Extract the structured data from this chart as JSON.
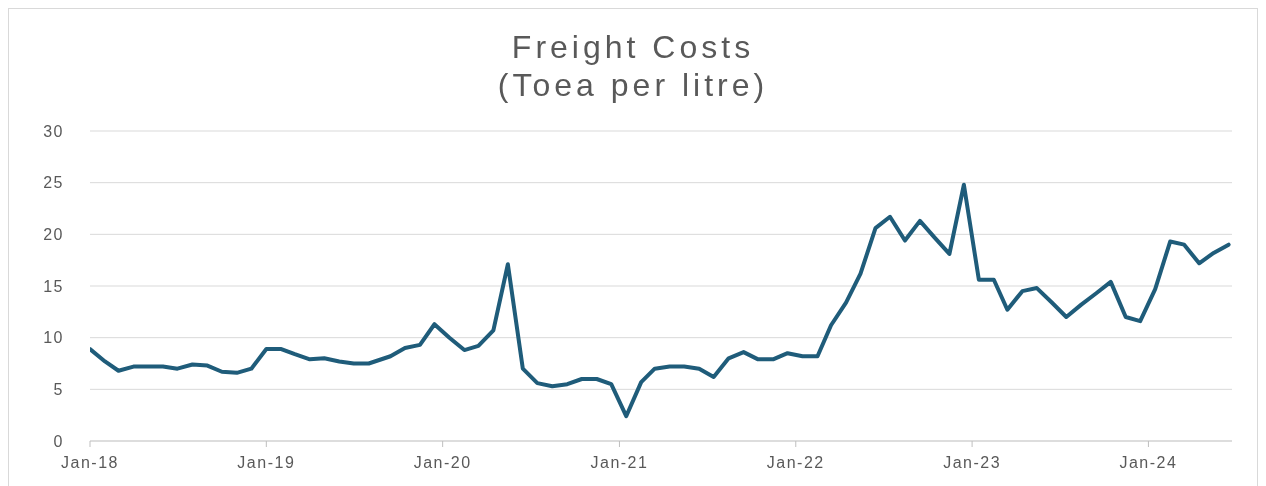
{
  "chart_data": {
    "type": "line",
    "title": "Freight Costs",
    "subtitle": "(Toea per litre)",
    "x": [
      "2018-01",
      "2018-02",
      "2018-03",
      "2018-04",
      "2018-05",
      "2018-06",
      "2018-07",
      "2018-08",
      "2018-09",
      "2018-10",
      "2018-11",
      "2018-12",
      "2019-01",
      "2019-02",
      "2019-03",
      "2019-04",
      "2019-05",
      "2019-06",
      "2019-07",
      "2019-08",
      "2019-09-15",
      "2019-10-15",
      "2019-11-15",
      "2019-12-15",
      "2020-01-15",
      "2020-02-15",
      "2020-03-15",
      "2020-04-15",
      "2020-05-15",
      "2020-06-15",
      "2020-07-15",
      "2020-08-15",
      "2020-09-15",
      "2020-10-15",
      "2020-11-15",
      "2020-12-15",
      "2021-01-15",
      "2021-02-15",
      "2021-03-15",
      "2021-04-15",
      "2021-05-15",
      "2021-06-15",
      "2021-07-15",
      "2021-08-15",
      "2021-09-15",
      "2021-10-15",
      "2021-11-15",
      "2021-12-15",
      "2022-01-15",
      "2022-02-15",
      "2022-03-15",
      "2022-04-15",
      "2022-05-15",
      "2022-06-15",
      "2022-07-15",
      "2022-08-15",
      "2022-09-15",
      "2022-10-15",
      "2022-11-15",
      "2022-12-15",
      "2023-01-15",
      "2023-02-15",
      "2023-03-15",
      "2023-04-15",
      "2023-05-15",
      "2023-06-15",
      "2023-07-15",
      "2023-08-15",
      "2023-09-15",
      "2023-10-15",
      "2023-11-15",
      "2023-12-15",
      "2024-01-15",
      "2024-02-15",
      "2024-03-15",
      "2024-04-15",
      "2024-05-15",
      "2024-06-15"
    ],
    "values": [
      8.9,
      7.7,
      6.8,
      7.2,
      7.2,
      7.2,
      7.0,
      7.4,
      7.3,
      6.7,
      6.6,
      7.0,
      8.9,
      8.9,
      8.4,
      7.9,
      8.0,
      7.7,
      7.5,
      7.5,
      8.2,
      9.0,
      9.3,
      11.3,
      10.0,
      8.8,
      9.2,
      10.7,
      17.1,
      7.0,
      5.6,
      5.3,
      5.5,
      6.0,
      6.0,
      5.5,
      2.4,
      5.7,
      7.0,
      7.2,
      7.2,
      7.0,
      6.2,
      8.0,
      8.6,
      7.9,
      7.9,
      8.5,
      8.2,
      8.2,
      11.2,
      13.4,
      16.2,
      20.6,
      21.7,
      19.4,
      21.3,
      19.7,
      18.1,
      24.8,
      15.6,
      15.6,
      12.7,
      14.5,
      14.8,
      13.4,
      12.0,
      13.2,
      14.3,
      15.4,
      12.0,
      11.6,
      14.7,
      19.3,
      19.0,
      17.2,
      18.2,
      19.0
    ],
    "color": "#1f5c7a",
    "line_style": "solid",
    "xlim": [
      "2018-01-01",
      "2024-06-22"
    ],
    "xticks": [
      {
        "value": "2018-01-01",
        "label": "Jan-18"
      },
      {
        "value": "2019-01-01",
        "label": "Jan-19"
      },
      {
        "value": "2020-01-01",
        "label": "Jan-20"
      },
      {
        "value": "2021-01-01",
        "label": "Jan-21"
      },
      {
        "value": "2022-01-01",
        "label": "Jan-22"
      },
      {
        "value": "2023-01-01",
        "label": "Jan-23"
      },
      {
        "value": "2024-01-01",
        "label": "Jan-24"
      }
    ],
    "ylim": [
      0,
      30
    ],
    "yticks": [
      0,
      5,
      10,
      15,
      20,
      25,
      30
    ],
    "grid": "y"
  }
}
